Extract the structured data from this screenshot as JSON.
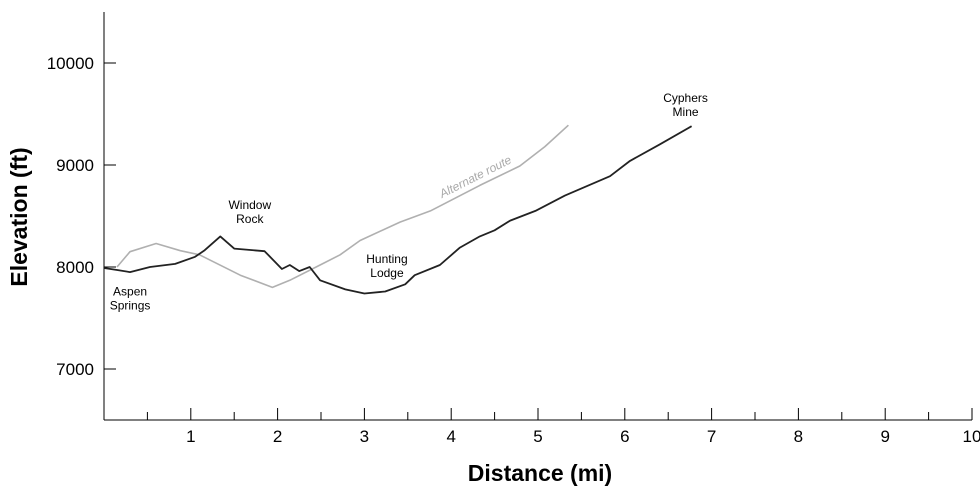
{
  "chart_data": {
    "type": "line",
    "title": "",
    "xlabel": "Distance (mi)",
    "ylabel": "Elevation (ft)",
    "xlim": [
      0,
      10
    ],
    "ylim": [
      6500,
      10500
    ],
    "xticks": [
      1,
      2,
      3,
      4,
      5,
      6,
      7,
      8,
      9,
      10
    ],
    "xticks_minor": [
      0.5,
      1.5,
      2.5,
      3.5,
      4.5,
      5.5,
      6.5,
      7.5,
      8.5,
      9.5
    ],
    "yticks": [
      7000,
      8000,
      9000,
      10000
    ],
    "grid": false,
    "series": [
      {
        "color": "#222222",
        "x": [
          0,
          0.16,
          0.3,
          0.53,
          0.82,
          1.05,
          1.16,
          1.34,
          1.5,
          1.85,
          1.97,
          2.05,
          2.14,
          2.25,
          2.37,
          2.49,
          2.78,
          3.0,
          3.24,
          3.47,
          3.58,
          3.87,
          4.1,
          4.33,
          4.5,
          4.68,
          4.97,
          5.31,
          5.83,
          6.06,
          6.4,
          6.77
        ],
        "y": [
          7990,
          7970,
          7950,
          8000,
          8030,
          8100,
          8165,
          8300,
          8180,
          8155,
          8050,
          7980,
          8020,
          7960,
          8000,
          7870,
          7780,
          7740,
          7760,
          7830,
          7920,
          8020,
          8190,
          8300,
          8360,
          8455,
          8550,
          8700,
          8890,
          9040,
          9200,
          9380
        ]
      },
      {
        "name": "Alternate route",
        "color": "#b0b0b0",
        "x": [
          0.15,
          0.3,
          0.6,
          0.88,
          1.1,
          1.57,
          1.94,
          2.14,
          2.49,
          2.72,
          2.95,
          3.41,
          3.76,
          4.33,
          4.79,
          5.08,
          5.35
        ],
        "y": [
          8000,
          8150,
          8230,
          8160,
          8120,
          7920,
          7800,
          7870,
          8020,
          8120,
          8260,
          8440,
          8550,
          8800,
          8990,
          9180,
          9390
        ]
      }
    ],
    "annotations": [
      {
        "lines": [
          "Aspen",
          "Springs"
        ],
        "x": 0.3,
        "y": 7720
      },
      {
        "lines": [
          "Window",
          "Rock"
        ],
        "x": 1.68,
        "y": 8570
      },
      {
        "lines": [
          "Hunting",
          "Lodge"
        ],
        "x": 3.26,
        "y": 8040
      },
      {
        "lines": [
          "Cyphers",
          "Mine"
        ],
        "x": 6.7,
        "y": 9620
      }
    ],
    "series_label": {
      "text": "Alternate route",
      "x": 4.3,
      "y": 8850
    }
  }
}
